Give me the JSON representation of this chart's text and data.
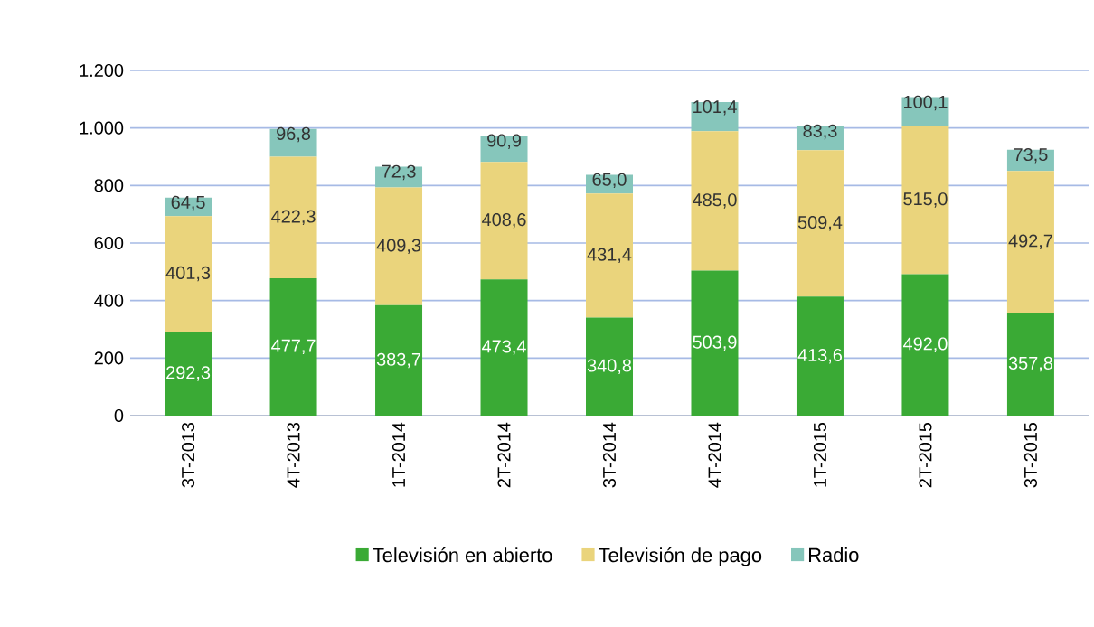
{
  "chart_data": {
    "type": "bar",
    "stacked": true,
    "grid": "y",
    "legend": "bottom",
    "categories": [
      "3T-2013",
      "4T-2013",
      "1T-2014",
      "2T-2014",
      "3T-2014",
      "4T-2014",
      "1T-2015",
      "2T-2015",
      "3T-2015"
    ],
    "ylim": [
      0,
      1200
    ],
    "yticks": [
      0,
      200,
      400,
      600,
      800,
      {
        "value": 1000,
        "label": "1.000"
      },
      {
        "value": 1200,
        "label": "1.200"
      }
    ],
    "series": [
      {
        "name": "Televisión en abierto",
        "color": "#3aaa35",
        "values": [
          292.3,
          477.7,
          383.7,
          473.4,
          340.8,
          503.9,
          413.6,
          492.0,
          357.8
        ],
        "value_labels": [
          "292,3",
          "477,7",
          "383,7",
          "473,4",
          "340,8",
          "503,9",
          "413,6",
          "492,0",
          "357,8"
        ]
      },
      {
        "name": "Televisión de pago",
        "color": "#ead47c",
        "values": [
          401.3,
          422.3,
          409.3,
          408.6,
          431.4,
          485.0,
          509.4,
          515.0,
          492.7
        ],
        "value_labels": [
          "401,3",
          "422,3",
          "409,3",
          "408,6",
          "431,4",
          "485,0",
          "509,4",
          "515,0",
          "492,7"
        ]
      },
      {
        "name": "Radio",
        "color": "#86c6bb",
        "values": [
          64.5,
          96.8,
          72.3,
          90.9,
          65.0,
          101.4,
          83.3,
          100.1,
          73.5
        ],
        "value_labels": [
          "64,5",
          "96,8",
          "72,3",
          "90,9",
          "65,0",
          "101,4",
          "83,3",
          "100,1",
          "73,5"
        ]
      }
    ]
  }
}
